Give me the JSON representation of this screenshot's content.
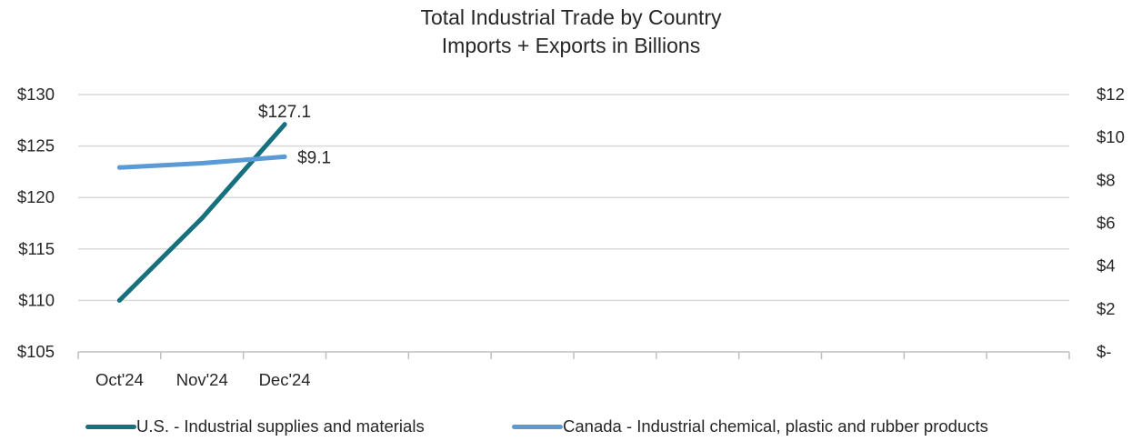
{
  "chart_data": {
    "type": "line",
    "title": "Total Industrial Trade by Country",
    "subtitle": "Imports + Exports in Billions",
    "categories": [
      "Oct'24",
      "Nov'24",
      "Dec'24"
    ],
    "y_left": {
      "range": [
        105,
        130
      ],
      "tick_labels": [
        "$105",
        "$110",
        "$115",
        "$120",
        "$125",
        "$130"
      ]
    },
    "y_right": {
      "range": [
        0,
        12
      ],
      "tick_labels": [
        "$-",
        "$2",
        "$4",
        "$6",
        "$8",
        "$10",
        "$12"
      ]
    },
    "x_slots": 12,
    "gridlines": true,
    "legend_position": "bottom",
    "series": [
      {
        "name": "U.S. - Industrial supplies and materials",
        "axis": "left",
        "color": "#16707E",
        "values": [
          110.0,
          118.0,
          127.1
        ],
        "end_label": "$127.1"
      },
      {
        "name": "Canada - Industrial chemical, plastic and rubber products",
        "axis": "right",
        "color": "#5B9BD5",
        "values": [
          8.6,
          8.8,
          9.1
        ],
        "end_label": "$9.1"
      }
    ]
  }
}
